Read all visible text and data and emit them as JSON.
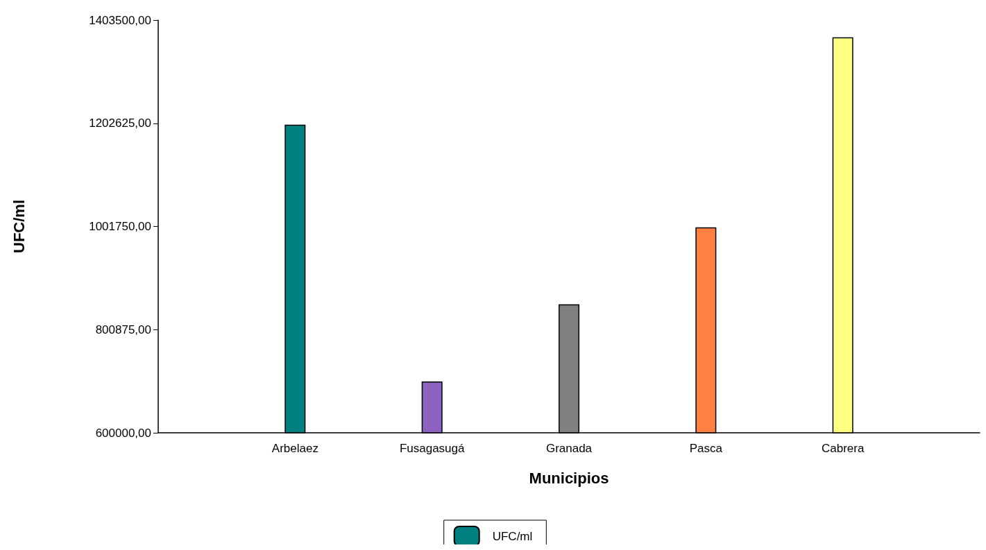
{
  "chart_data": {
    "type": "bar",
    "xlabel": "Municipios",
    "ylabel": "UFC/ml",
    "categories": [
      "Arbelaez",
      "Fusagasugá",
      "Granada",
      "Pasca",
      "Cabrera"
    ],
    "series": [
      {
        "name": "UFC/ml",
        "color": "#008080",
        "colors": [
          "#008080",
          "#8e62c0",
          "#808080",
          "#ff8040",
          "#ffff80"
        ],
        "values": [
          1200000,
          700000,
          850000,
          1000000,
          1370000
        ]
      }
    ],
    "ylim": [
      600000,
      1403500
    ],
    "yticks": [
      {
        "value": 600000,
        "label": "600000,00"
      },
      {
        "value": 800875,
        "label": "800875,00"
      },
      {
        "value": 1001750,
        "label": "1001750,00"
      },
      {
        "value": 1202625,
        "label": "1202625,00"
      },
      {
        "value": 1403500,
        "label": "1403500,00"
      }
    ],
    "grid": false,
    "legend": "bottom"
  }
}
